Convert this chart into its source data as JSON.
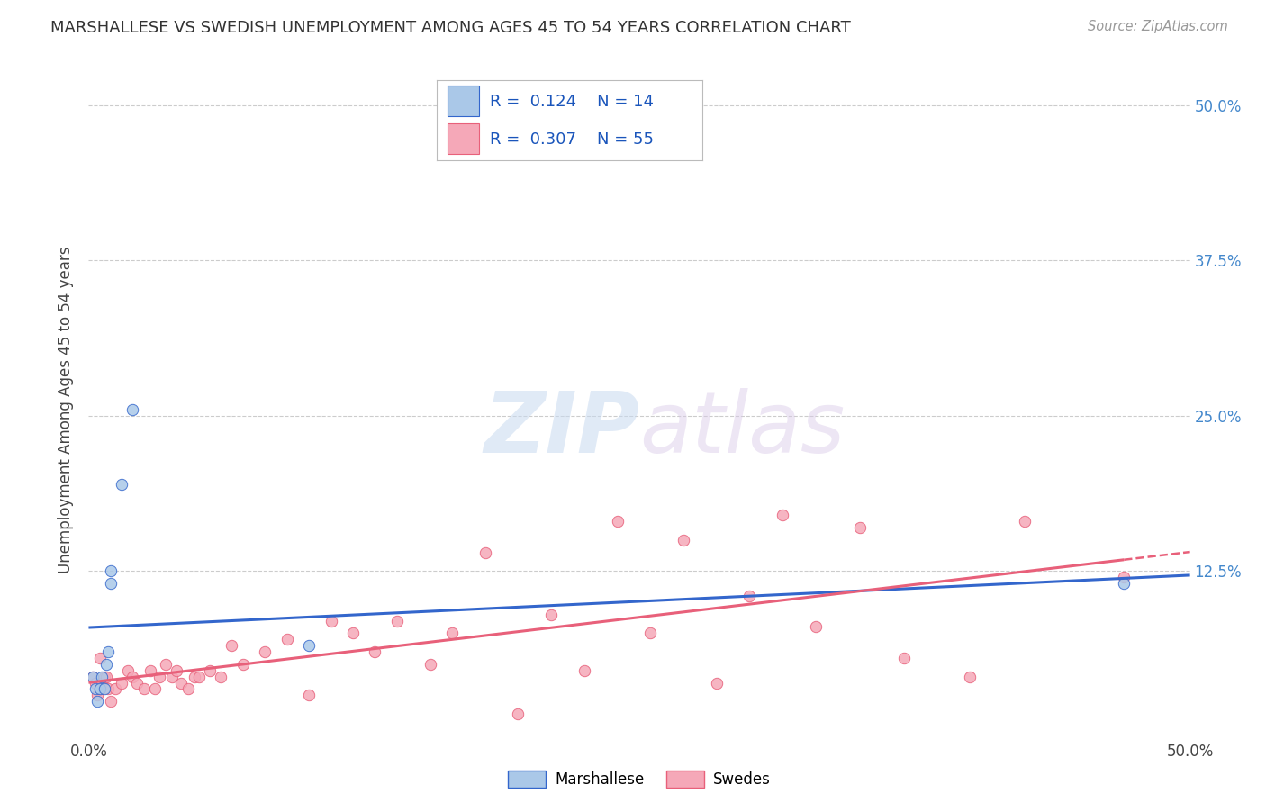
{
  "title": "MARSHALLESE VS SWEDISH UNEMPLOYMENT AMONG AGES 45 TO 54 YEARS CORRELATION CHART",
  "source": "Source: ZipAtlas.com",
  "ylabel": "Unemployment Among Ages 45 to 54 years",
  "xlim": [
    0,
    0.5
  ],
  "ylim": [
    -0.01,
    0.52
  ],
  "xticks": [
    0.0,
    0.125,
    0.25,
    0.375,
    0.5
  ],
  "yticks": [
    0.0,
    0.125,
    0.25,
    0.375,
    0.5
  ],
  "marshallese_R": 0.124,
  "marshallese_N": 14,
  "swedes_R": 0.307,
  "swedes_N": 55,
  "marshallese_color": "#aac8e8",
  "swedes_color": "#f5a8b8",
  "marshallese_line_color": "#3366cc",
  "swedes_line_color": "#e8607a",
  "marshallese_x": [
    0.002,
    0.003,
    0.004,
    0.005,
    0.006,
    0.007,
    0.008,
    0.009,
    0.01,
    0.01,
    0.015,
    0.02,
    0.1,
    0.47
  ],
  "marshallese_y": [
    0.04,
    0.03,
    0.02,
    0.03,
    0.04,
    0.03,
    0.05,
    0.06,
    0.115,
    0.125,
    0.195,
    0.255,
    0.065,
    0.115
  ],
  "swedes_x": [
    0.002,
    0.003,
    0.004,
    0.005,
    0.005,
    0.006,
    0.007,
    0.008,
    0.009,
    0.01,
    0.012,
    0.015,
    0.018,
    0.02,
    0.022,
    0.025,
    0.028,
    0.03,
    0.032,
    0.035,
    0.038,
    0.04,
    0.042,
    0.045,
    0.048,
    0.05,
    0.055,
    0.06,
    0.065,
    0.07,
    0.08,
    0.09,
    0.1,
    0.11,
    0.12,
    0.13,
    0.14,
    0.155,
    0.165,
    0.18,
    0.195,
    0.21,
    0.225,
    0.24,
    0.255,
    0.27,
    0.285,
    0.3,
    0.315,
    0.33,
    0.35,
    0.37,
    0.4,
    0.425,
    0.47
  ],
  "swedes_y": [
    0.04,
    0.035,
    0.025,
    0.03,
    0.055,
    0.035,
    0.04,
    0.04,
    0.03,
    0.02,
    0.03,
    0.035,
    0.045,
    0.04,
    0.035,
    0.03,
    0.045,
    0.03,
    0.04,
    0.05,
    0.04,
    0.045,
    0.035,
    0.03,
    0.04,
    0.04,
    0.045,
    0.04,
    0.065,
    0.05,
    0.06,
    0.07,
    0.025,
    0.085,
    0.075,
    0.06,
    0.085,
    0.05,
    0.075,
    0.14,
    0.01,
    0.09,
    0.045,
    0.165,
    0.075,
    0.15,
    0.035,
    0.105,
    0.17,
    0.08,
    0.16,
    0.055,
    0.04,
    0.165,
    0.12
  ],
  "background_color": "#ffffff",
  "grid_color": "#cccccc",
  "watermark_zip": "ZIP",
  "watermark_atlas": "atlas"
}
